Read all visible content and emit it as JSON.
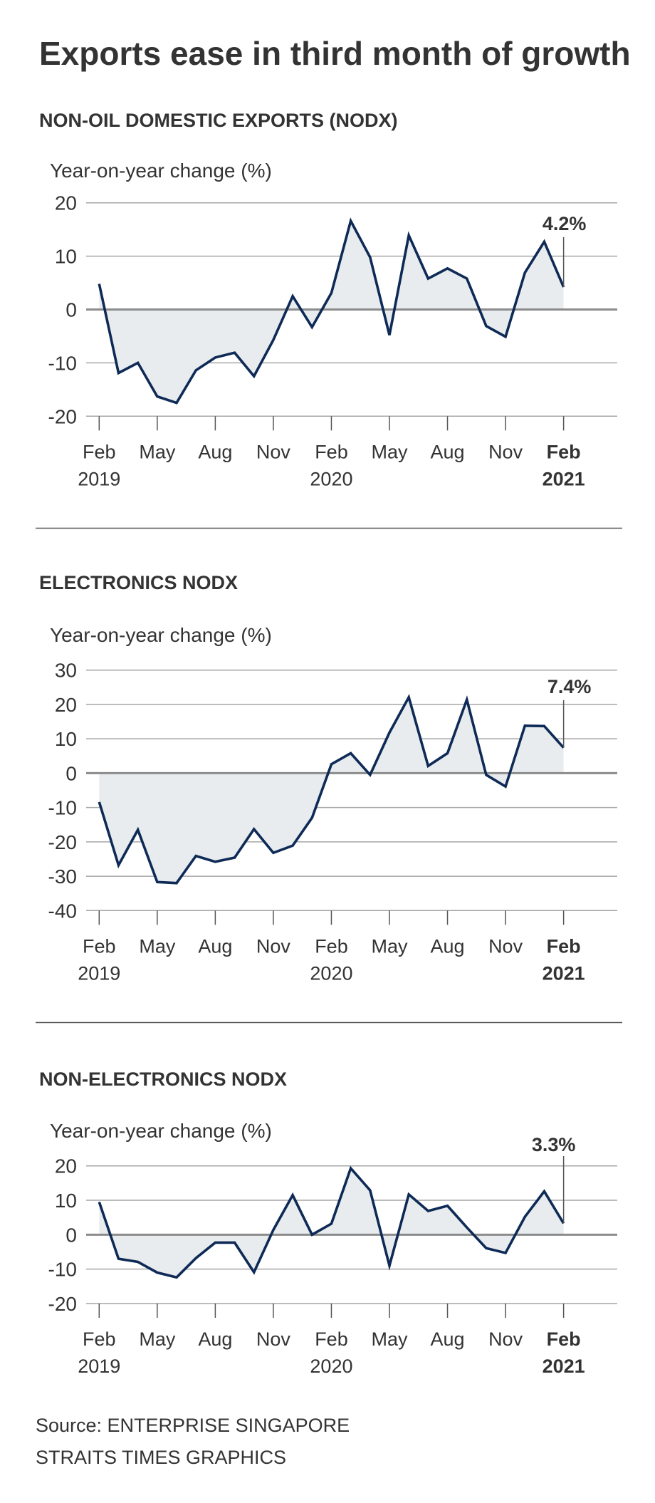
{
  "title": "Exports ease in third month of growth",
  "source_line": "Source: ENTERPRISE SINGAPORE",
  "credit_line": "STRAITS TIMES GRAPHICS",
  "colors": {
    "line": "#0e2a56",
    "area": "#e9ecee",
    "grid": "#a6a6a6",
    "zero_line": "#8c8c8c",
    "text": "#333333"
  },
  "chart_data": [
    {
      "type": "area",
      "title": "NON-OIL DOMESTIC EXPORTS (NODX)",
      "ylabel": "Year-on-year change (%)",
      "xlabel": "",
      "ylim": [
        -20,
        20
      ],
      "yticks": [
        20,
        10,
        0,
        -10,
        -20
      ],
      "ytick_labels": [
        "20",
        "10",
        "0",
        "-10",
        "-20"
      ],
      "grid": true,
      "x": [
        "Feb 2019",
        "Mar 2019",
        "Apr 2019",
        "May 2019",
        "Jun 2019",
        "Jul 2019",
        "Aug 2019",
        "Sep 2019",
        "Oct 2019",
        "Nov 2019",
        "Dec 2019",
        "Jan 2020",
        "Feb 2020",
        "Mar 2020",
        "Apr 2020",
        "May 2020",
        "Jun 2020",
        "Jul 2020",
        "Aug 2020",
        "Sep 2020",
        "Oct 2020",
        "Nov 2020",
        "Dec 2020",
        "Jan 2021",
        "Feb 2021"
      ],
      "xtick_labels": [
        {
          "month": "Feb",
          "year": "2019",
          "bold": false
        },
        {
          "month": "May",
          "year": "",
          "bold": false
        },
        {
          "month": "Aug",
          "year": "",
          "bold": false
        },
        {
          "month": "Nov",
          "year": "",
          "bold": false
        },
        {
          "month": "Feb",
          "year": "2020",
          "bold": false
        },
        {
          "month": "May",
          "year": "",
          "bold": false
        },
        {
          "month": "Aug",
          "year": "",
          "bold": false
        },
        {
          "month": "Nov",
          "year": "",
          "bold": false
        },
        {
          "month": "Feb",
          "year": "2021",
          "bold": true
        }
      ],
      "series": [
        {
          "name": "NODX",
          "values": [
            4.8,
            -11.9,
            -10.0,
            -16.3,
            -17.5,
            -11.4,
            -9.0,
            -8.1,
            -12.5,
            -5.7,
            2.5,
            -3.3,
            3.1,
            16.6,
            9.8,
            -4.8,
            13.9,
            5.8,
            7.7,
            5.8,
            -3.1,
            -5.1,
            6.9,
            12.7,
            4.2
          ]
        }
      ],
      "annotation": {
        "label": "4.2%",
        "x": "Feb 2021",
        "value": 4.2
      }
    },
    {
      "type": "area",
      "title": "ELECTRONICS NODX",
      "ylabel": "Year-on-year change (%)",
      "xlabel": "",
      "ylim": [
        -40,
        30
      ],
      "yticks": [
        30,
        20,
        10,
        0,
        -10,
        -20,
        -30,
        -40
      ],
      "ytick_labels": [
        "30",
        "20",
        "10",
        "0",
        "-10",
        "-20",
        "-30",
        "-40"
      ],
      "grid": true,
      "x": [
        "Feb 2019",
        "Mar 2019",
        "Apr 2019",
        "May 2019",
        "Jun 2019",
        "Jul 2019",
        "Aug 2019",
        "Sep 2019",
        "Oct 2019",
        "Nov 2019",
        "Dec 2019",
        "Jan 2020",
        "Feb 2020",
        "Mar 2020",
        "Apr 2020",
        "May 2020",
        "Jun 2020",
        "Jul 2020",
        "Aug 2020",
        "Sep 2020",
        "Oct 2020",
        "Nov 2020",
        "Dec 2020",
        "Jan 2021",
        "Feb 2021"
      ],
      "xtick_labels": [
        {
          "month": "Feb",
          "year": "2019",
          "bold": false
        },
        {
          "month": "May",
          "year": "",
          "bold": false
        },
        {
          "month": "Aug",
          "year": "",
          "bold": false
        },
        {
          "month": "Nov",
          "year": "",
          "bold": false
        },
        {
          "month": "Feb",
          "year": "2020",
          "bold": false
        },
        {
          "month": "May",
          "year": "",
          "bold": false
        },
        {
          "month": "Aug",
          "year": "",
          "bold": false
        },
        {
          "month": "Nov",
          "year": "",
          "bold": false
        },
        {
          "month": "Feb",
          "year": "2021",
          "bold": true
        }
      ],
      "series": [
        {
          "name": "Electronics NODX",
          "values": [
            -8.4,
            -26.8,
            -16.5,
            -31.7,
            -32.0,
            -24.1,
            -25.8,
            -24.6,
            -16.3,
            -23.2,
            -21.1,
            -13.0,
            2.6,
            5.8,
            -0.5,
            11.8,
            22.1,
            2.1,
            5.8,
            21.4,
            -0.5,
            -3.9,
            13.8,
            13.7,
            7.4
          ]
        }
      ],
      "annotation": {
        "label": "7.4%",
        "x": "Feb 2021",
        "value": 7.4
      }
    },
    {
      "type": "area",
      "title": "NON-ELECTRONICS NODX",
      "ylabel": "Year-on-year change (%)",
      "xlabel": "",
      "ylim": [
        -20,
        20
      ],
      "yticks": [
        20,
        10,
        0,
        -10,
        -20
      ],
      "ytick_labels": [
        "20",
        "10",
        "0",
        "-10",
        "-20"
      ],
      "grid": true,
      "x": [
        "Feb 2019",
        "Mar 2019",
        "Apr 2019",
        "May 2019",
        "Jun 2019",
        "Jul 2019",
        "Aug 2019",
        "Sep 2019",
        "Oct 2019",
        "Nov 2019",
        "Dec 2019",
        "Jan 2020",
        "Feb 2020",
        "Mar 2020",
        "Apr 2020",
        "May 2020",
        "Jun 2020",
        "Jul 2020",
        "Aug 2020",
        "Sep 2020",
        "Oct 2020",
        "Nov 2020",
        "Dec 2020",
        "Jan 2021",
        "Feb 2021"
      ],
      "xtick_labels": [
        {
          "month": "Feb",
          "year": "2019",
          "bold": false
        },
        {
          "month": "May",
          "year": "",
          "bold": false
        },
        {
          "month": "Aug",
          "year": "",
          "bold": false
        },
        {
          "month": "Nov",
          "year": "",
          "bold": false
        },
        {
          "month": "Feb",
          "year": "2020",
          "bold": false
        },
        {
          "month": "May",
          "year": "",
          "bold": false
        },
        {
          "month": "Aug",
          "year": "",
          "bold": false
        },
        {
          "month": "Nov",
          "year": "",
          "bold": false
        },
        {
          "month": "Feb",
          "year": "2021",
          "bold": true
        }
      ],
      "series": [
        {
          "name": "Non-electronics NODX",
          "values": [
            9.5,
            -7.0,
            -7.9,
            -11.0,
            -12.4,
            -6.8,
            -2.3,
            -2.3,
            -10.9,
            1.4,
            11.5,
            0.0,
            3.2,
            19.3,
            12.9,
            -9.0,
            11.7,
            6.9,
            8.4,
            2.1,
            -3.9,
            -5.3,
            5.2,
            12.6,
            3.3
          ]
        }
      ],
      "annotation": {
        "label": "3.3%",
        "x": "Feb 2021",
        "value": 3.3
      }
    }
  ]
}
